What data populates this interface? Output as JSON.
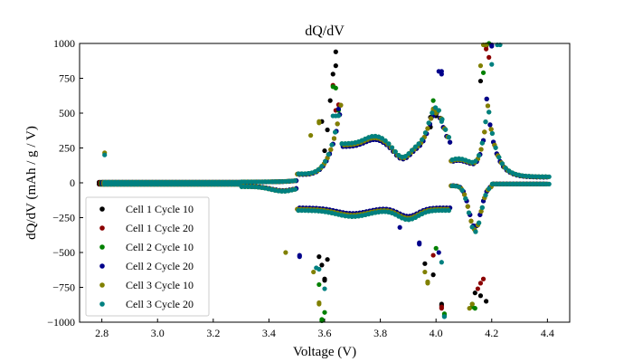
{
  "chart_data": {
    "type": "scatter",
    "title": "dQ/dV",
    "xlabel": "Voltage (V)",
    "ylabel": "dQ/dV (mAh / g / V)",
    "xlim": [
      2.72,
      4.48
    ],
    "ylim": [
      -1000,
      1000
    ],
    "xticks": [
      2.8,
      3.0,
      3.2,
      3.4,
      3.6,
      3.8,
      4.0,
      4.2,
      4.4
    ],
    "xtick_labels": [
      "2.8",
      "3.0",
      "3.2",
      "3.4",
      "3.6",
      "3.8",
      "4.0",
      "4.2",
      "4.4"
    ],
    "yticks": [
      -1000,
      -750,
      -500,
      -250,
      0,
      250,
      500,
      750,
      1000
    ],
    "ytick_labels": [
      "−1000",
      "−750",
      "−500",
      "−250",
      "0",
      "250",
      "500",
      "750",
      "1000"
    ],
    "legend_position": "lower-left",
    "series": [
      {
        "name": "Cell 1 Cycle 10",
        "color": "#000000",
        "charge": [
          [
            3.6,
            230
          ],
          [
            3.61,
            380
          ],
          [
            3.62,
            590
          ],
          [
            3.63,
            780
          ],
          [
            3.64,
            940
          ],
          [
            3.98,
            400
          ],
          [
            4.0,
            480
          ],
          [
            4.16,
            730
          ],
          [
            4.18,
            990
          ]
        ],
        "discharge": [
          [
            3.59,
            -590
          ],
          [
            3.6,
            -690
          ],
          [
            3.61,
            -550
          ],
          [
            3.99,
            -660
          ],
          [
            4.02,
            -880
          ],
          [
            4.14,
            -790
          ],
          [
            4.18,
            -850
          ]
        ],
        "peaks_charge": [
          [
            3.59,
            440
          ],
          [
            3.64,
            840
          ],
          [
            3.98,
            470
          ]
        ],
        "peaks_discharge": [
          [
            3.58,
            -530
          ],
          [
            3.6,
            -700
          ],
          [
            3.96,
            -580
          ],
          [
            4.02,
            -870
          ],
          [
            4.16,
            -810
          ]
        ]
      },
      {
        "name": "Cell 1 Cycle 20",
        "color": "#8b0000",
        "charge": [
          [
            3.63,
            700
          ],
          [
            3.65,
            560
          ],
          [
            4.18,
            960
          ],
          [
            4.19,
            900
          ]
        ],
        "discharge": [
          [
            3.99,
            -520
          ],
          [
            4.02,
            -890
          ],
          [
            4.15,
            -760
          ],
          [
            4.17,
            -690
          ]
        ],
        "peaks_charge": [
          [
            3.64,
            520
          ],
          [
            4.18,
            980
          ]
        ],
        "peaks_discharge": [
          [
            4.02,
            -900
          ],
          [
            4.16,
            -720
          ]
        ]
      },
      {
        "name": "Cell 2 Cycle 10",
        "color": "#008000",
        "charge": [
          [
            3.64,
            680
          ],
          [
            3.65,
            520
          ],
          [
            3.99,
            590
          ],
          [
            4.17,
            790
          ],
          [
            4.19,
            1000
          ]
        ],
        "discharge": [
          [
            3.58,
            -730
          ],
          [
            3.59,
            -980
          ],
          [
            3.6,
            -930
          ],
          [
            4.0,
            -470
          ],
          [
            4.03,
            -940
          ],
          [
            4.13,
            -870
          ],
          [
            4.14,
            -900
          ]
        ],
        "peaks_charge": [
          [
            3.63,
            690
          ],
          [
            4.18,
            990
          ]
        ],
        "peaks_discharge": [
          [
            3.59,
            -990
          ],
          [
            4.03,
            -950
          ],
          [
            4.13,
            -890
          ]
        ]
      },
      {
        "name": "Cell 2 Cycle 20",
        "color": "#00008b",
        "charge": [
          [
            3.65,
            530
          ],
          [
            4.01,
            800
          ],
          [
            4.02,
            780
          ],
          [
            4.2,
            980
          ]
        ],
        "discharge": [
          [
            3.51,
            -520
          ],
          [
            3.87,
            -320
          ],
          [
            3.94,
            -430
          ],
          [
            4.01,
            -500
          ]
        ],
        "peaks_charge": [
          [
            4.02,
            800
          ],
          [
            4.2,
            990
          ]
        ],
        "peaks_discharge": [
          [
            3.51,
            -530
          ],
          [
            3.94,
            -440
          ]
        ]
      },
      {
        "name": "Cell 3 Cycle 10",
        "color": "#808000",
        "charge": [
          [
            2.81,
            215
          ],
          [
            3.55,
            340
          ],
          [
            3.58,
            440
          ],
          [
            3.99,
            520
          ],
          [
            4.0,
            500
          ],
          [
            4.16,
            840
          ],
          [
            4.18,
            990
          ]
        ],
        "discharge": [
          [
            3.46,
            -500
          ],
          [
            3.56,
            -640
          ],
          [
            3.58,
            -860
          ],
          [
            3.96,
            -640
          ],
          [
            3.97,
            -710
          ],
          [
            4.13,
            -870
          ]
        ],
        "peaks_charge": [
          [
            3.58,
            430
          ],
          [
            3.99,
            530
          ],
          [
            4.17,
            990
          ]
        ],
        "peaks_discharge": [
          [
            3.58,
            -870
          ],
          [
            3.97,
            -720
          ],
          [
            4.12,
            -900
          ]
        ]
      },
      {
        "name": "Cell 3 Cycle 20",
        "color": "#008080",
        "charge": [
          [
            2.81,
            200
          ],
          [
            3.63,
            480
          ],
          [
            4.02,
            440
          ],
          [
            4.2,
            850
          ],
          [
            4.23,
            990
          ]
        ],
        "discharge": [
          [
            3.57,
            -610
          ],
          [
            3.6,
            -760
          ],
          [
            4.02,
            -570
          ],
          [
            4.03,
            -960
          ]
        ],
        "peaks_charge": [
          [
            3.64,
            480
          ],
          [
            4.22,
            990
          ]
        ],
        "peaks_discharge": [
          [
            3.58,
            -620
          ],
          [
            4.03,
            -960
          ]
        ]
      }
    ]
  }
}
